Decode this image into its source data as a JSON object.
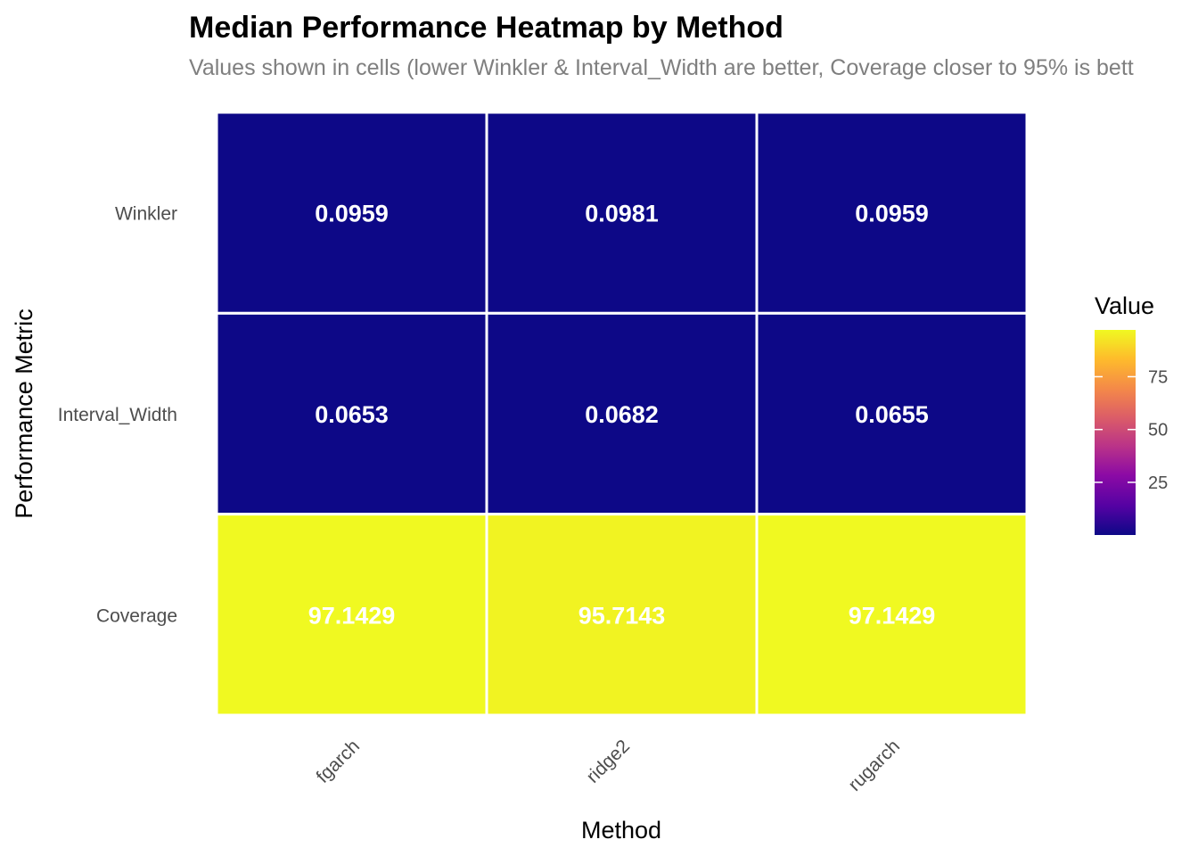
{
  "chart_data": {
    "type": "heatmap",
    "title": "Median Performance Heatmap by Method",
    "subtitle": "Values shown in cells (lower Winkler & Interval_Width are better, Coverage closer to 95% is bett",
    "xlabel": "Method",
    "ylabel": "Performance Metric",
    "x_categories": [
      "fgarch",
      "ridge2",
      "rugarch"
    ],
    "y_categories": [
      "Winkler",
      "Interval_Width",
      "Coverage"
    ],
    "values": [
      [
        0.0959,
        0.0981,
        0.0959
      ],
      [
        0.0653,
        0.0682,
        0.0655
      ],
      [
        97.1429,
        95.7143,
        97.1429
      ]
    ],
    "value_labels": [
      [
        "0.0959",
        "0.0981",
        "0.0959"
      ],
      [
        "0.0653",
        "0.0682",
        "0.0655"
      ],
      [
        "97.1429",
        "95.7143",
        "97.1429"
      ]
    ],
    "legend": {
      "title": "Value",
      "ticks": [
        25,
        50,
        75
      ],
      "tick_labels": [
        "25",
        "50",
        "75"
      ],
      "range": [
        0.0653,
        97.1429
      ],
      "placement": "right"
    },
    "colorscale": "plasma",
    "grid": false
  }
}
